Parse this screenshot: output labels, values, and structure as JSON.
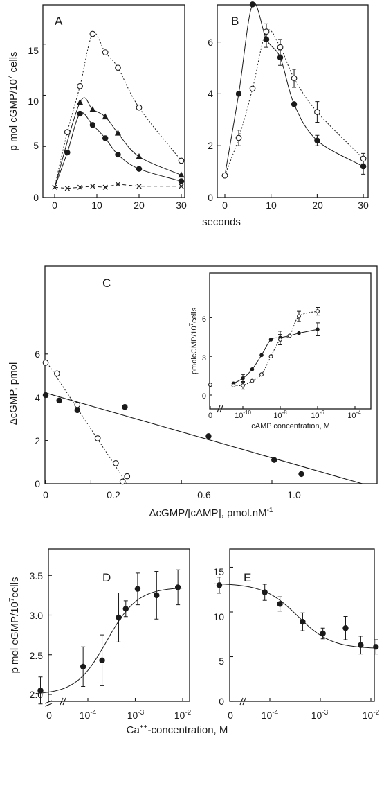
{
  "panel_labels": [
    "A",
    "B",
    "C",
    "D",
    "E"
  ],
  "superscripts": {
    "seven": "7",
    "minus_one": "-1"
  },
  "chart_data": [
    {
      "panel": "A",
      "type": "line",
      "xlabel": "seconds",
      "ylabel": "p mol cGMP/10",
      "ylabel_unit": "cells",
      "xlim": [
        0,
        30
      ],
      "ylim": [
        0,
        18
      ],
      "x_ticks": [
        "0",
        "10",
        "20",
        "30"
      ],
      "y_ticks": [
        "0",
        "5",
        "10",
        "15"
      ],
      "series": [
        {
          "marker": "open-circle",
          "x": [
            0,
            3,
            6,
            9,
            12,
            15,
            20,
            30
          ],
          "y": [
            1,
            6.4,
            10.9,
            16.0,
            14.2,
            12.7,
            8.8,
            3.6
          ]
        },
        {
          "marker": "filled-triangle",
          "x": [
            0,
            6,
            9,
            12,
            15,
            20,
            30
          ],
          "y": [
            1,
            9.3,
            8.6,
            7.9,
            6.3,
            4.0,
            2.2
          ]
        },
        {
          "marker": "filled-circle",
          "x": [
            0,
            3,
            6,
            9,
            12,
            15,
            20,
            30
          ],
          "y": [
            1,
            4.4,
            8.2,
            7.1,
            5.8,
            4.2,
            2.8,
            1.6
          ]
        },
        {
          "marker": "cross",
          "x": [
            0,
            3,
            6,
            9,
            12,
            15,
            20,
            30
          ],
          "y": [
            1,
            0.9,
            1.0,
            1.1,
            1.0,
            1.3,
            1.1,
            1.1
          ]
        }
      ]
    },
    {
      "panel": "B",
      "type": "line",
      "xlim": [
        0,
        30
      ],
      "ylim": [
        0,
        7
      ],
      "x_ticks": [
        "0",
        "10",
        "20",
        "30"
      ],
      "y_ticks": [
        "0",
        "2",
        "4",
        "6"
      ],
      "series": [
        {
          "marker": "filled-circle",
          "x": [
            0,
            3,
            6,
            9,
            12,
            15,
            20,
            30
          ],
          "y": [
            0.85,
            4.0,
            7.45,
            6.1,
            5.4,
            3.6,
            2.2,
            1.2
          ],
          "err": [
            0,
            0,
            0,
            0.3,
            0.3,
            0,
            0.2,
            0.3
          ]
        },
        {
          "marker": "open-circle",
          "x": [
            0,
            3,
            6,
            9,
            12,
            15,
            20,
            30
          ],
          "y": [
            0.85,
            2.3,
            4.2,
            6.4,
            5.8,
            4.6,
            3.3,
            1.5
          ],
          "err": [
            0,
            0.3,
            0,
            0.3,
            0.3,
            0.35,
            0.4,
            0.2
          ]
        }
      ]
    },
    {
      "panel": "C",
      "type": "scatter",
      "xlabel": "ΔcGMP/[cAMP], pmol.nM",
      "ylabel": "ΔcGMP, pmol",
      "xlim": [
        0,
        1.45
      ],
      "ylim": [
        0,
        7
      ],
      "x_ticks": [
        "0",
        "0.2",
        "0.6",
        "1.0"
      ],
      "y_ticks": [
        "0",
        "2",
        "4",
        "6"
      ],
      "series": [
        {
          "marker": "filled-circle",
          "x": [
            0.0,
            0.06,
            0.14,
            0.35,
            0.72,
            1.01,
            1.13
          ],
          "y": [
            4.1,
            3.85,
            3.4,
            3.55,
            2.2,
            1.1,
            0.45
          ],
          "fit": [
            [
              0.0,
              4.2
            ],
            [
              1.4,
              0.0
            ]
          ]
        },
        {
          "marker": "open-circle",
          "x": [
            0.0,
            0.05,
            0.14,
            0.23,
            0.31,
            0.34,
            0.36
          ],
          "y": [
            5.6,
            5.1,
            3.65,
            2.1,
            0.95,
            0.1,
            0.35
          ],
          "fit": [
            [
              0.0,
              5.7
            ],
            [
              0.36,
              0.0
            ]
          ]
        }
      ]
    },
    {
      "panel": "C-inset",
      "type": "line",
      "xlabel": "cAMP  concentration, M",
      "ylabel": "pmolcGMP/10",
      "ylabel_unit": "cells",
      "ylim": [
        0,
        7
      ],
      "x_ticks": [
        "0",
        "10",
        "10",
        "10",
        "10"
      ],
      "x_tick_exponents": [
        "",
        "-10",
        "-8",
        "-6",
        "-4"
      ],
      "y_ticks": [
        "0",
        "3",
        "6"
      ],
      "series": [
        {
          "marker": "filled-circle",
          "logx": [
            null,
            -10.5,
            -10.0,
            -9.5,
            -9.0,
            -8.5,
            -8.0,
            -7.5,
            -7.0,
            -6.0
          ],
          "y": [
            0.8,
            0.9,
            1.3,
            2.0,
            3.1,
            4.3,
            4.45,
            4.6,
            4.8,
            5.1
          ],
          "err": [
            0,
            0,
            0.3,
            0,
            0,
            0,
            0.5,
            0,
            0,
            0.5
          ]
        },
        {
          "marker": "open-circle",
          "logx": [
            null,
            -10.5,
            -10.0,
            -9.5,
            -9.0,
            -8.5,
            -8.0,
            -7.5,
            -7.0,
            -6.0
          ],
          "y": [
            0.8,
            0.75,
            0.75,
            1.1,
            1.6,
            3.0,
            4.3,
            4.6,
            6.1,
            6.5
          ],
          "err": [
            0,
            0,
            0.3,
            0,
            0,
            0,
            0.4,
            0,
            0.4,
            0.3
          ]
        }
      ]
    },
    {
      "panel": "D",
      "type": "line",
      "xlabel": "Ca",
      "xlabel_superscript": "++",
      "xlabel_suffix": "-concentration, M",
      "ylabel": "p mol cGMP/10",
      "ylabel_unit": "cells",
      "ylim": [
        1.8,
        3.7
      ],
      "x_ticks": [
        "0",
        "10",
        "10",
        "10"
      ],
      "x_tick_exponents": [
        "",
        "-4",
        "-3",
        "-2"
      ],
      "y_ticks": [
        "2.0",
        "2.5",
        "3.0",
        "3.5"
      ],
      "series": [
        {
          "marker": "filled-circle",
          "logx": [
            -5.0,
            -4.1,
            -3.7,
            -3.35,
            -3.2,
            -2.95,
            -2.55,
            -2.1
          ],
          "y": [
            2.05,
            2.35,
            2.43,
            2.97,
            3.08,
            3.33,
            3.25,
            3.35
          ],
          "err": [
            0.17,
            0.25,
            0.32,
            0.31,
            0.1,
            0.2,
            0.3,
            0.22
          ]
        }
      ]
    },
    {
      "panel": "E",
      "type": "line",
      "ylim": [
        0,
        16.5
      ],
      "x_ticks": [
        "0",
        "10",
        "10",
        "10"
      ],
      "x_tick_exponents": [
        "",
        "-4",
        "-3",
        "-2"
      ],
      "y_ticks": [
        "0",
        "5",
        "10",
        "15"
      ],
      "series": [
        {
          "marker": "filled-circle",
          "logx": [
            -5.0,
            -4.1,
            -3.8,
            -3.35,
            -2.95,
            -2.5,
            -2.2,
            -1.9
          ],
          "y": [
            13.0,
            12.2,
            10.9,
            8.9,
            7.6,
            8.2,
            6.3,
            6.1
          ],
          "err": [
            0.9,
            0.9,
            0.8,
            1.0,
            0.6,
            1.3,
            1.0,
            0.8
          ]
        }
      ]
    }
  ]
}
